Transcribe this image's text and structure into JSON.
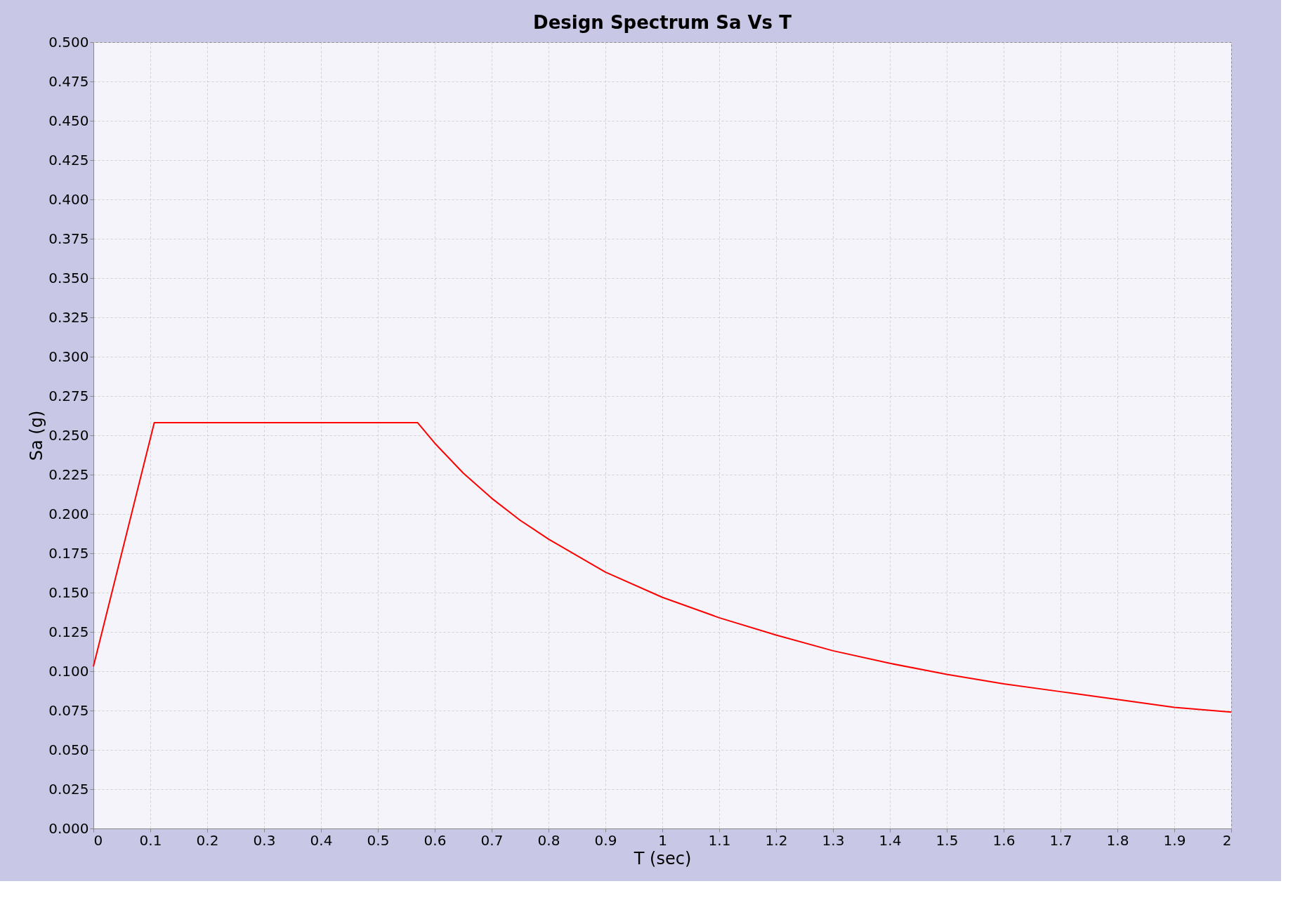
{
  "chart_data": {
    "type": "line",
    "title": "Design Spectrum Sa Vs T",
    "xlabel": "T (sec)",
    "ylabel": "Sa (g)",
    "x": [
      0,
      0.107,
      0.57,
      0.6,
      0.65,
      0.7,
      0.75,
      0.8,
      0.9,
      1.0,
      1.1,
      1.2,
      1.3,
      1.4,
      1.5,
      1.6,
      1.7,
      1.8,
      1.9,
      2.0
    ],
    "series": [
      {
        "color": "#ff0000",
        "values": [
          0.103,
          0.258,
          0.258,
          0.245,
          0.226,
          0.21,
          0.196,
          0.184,
          0.163,
          0.147,
          0.134,
          0.123,
          0.113,
          0.105,
          0.098,
          0.092,
          0.087,
          0.082,
          0.077,
          0.074
        ]
      }
    ],
    "xlim": [
      0,
      2
    ],
    "xticks": [
      0,
      0.1,
      0.2,
      0.3,
      0.4,
      0.5,
      0.6,
      0.7,
      0.8,
      0.9,
      1,
      1.1,
      1.2,
      1.3,
      1.4,
      1.5,
      1.6,
      1.7,
      1.8,
      1.9,
      2
    ],
    "ylim": [
      0,
      0.5
    ],
    "yticks": [
      {
        "value": 0,
        "label": "0.000"
      },
      {
        "value": 0.025,
        "label": "0.025"
      },
      {
        "value": 0.05,
        "label": "0.050"
      },
      {
        "value": 0.075,
        "label": "0.075"
      },
      {
        "value": 0.1,
        "label": "0.100"
      },
      {
        "value": 0.125,
        "label": "0.125"
      },
      {
        "value": 0.15,
        "label": "0.150"
      },
      {
        "value": 0.175,
        "label": "0.175"
      },
      {
        "value": 0.2,
        "label": "0.200"
      },
      {
        "value": 0.225,
        "label": "0.225"
      },
      {
        "value": 0.25,
        "label": "0.250"
      },
      {
        "value": 0.275,
        "label": "0.275"
      },
      {
        "value": 0.3,
        "label": "0.300"
      },
      {
        "value": 0.325,
        "label": "0.325"
      },
      {
        "value": 0.35,
        "label": "0.350"
      },
      {
        "value": 0.375,
        "label": "0.375"
      },
      {
        "value": 0.4,
        "label": "0.400"
      },
      {
        "value": 0.425,
        "label": "0.425"
      },
      {
        "value": 0.45,
        "label": "0.450"
      },
      {
        "value": 0.475,
        "label": "0.475"
      },
      {
        "value": 0.5,
        "label": "0.500"
      }
    ],
    "grid": true,
    "legend": false,
    "marker": "none",
    "line_style": "solid"
  }
}
